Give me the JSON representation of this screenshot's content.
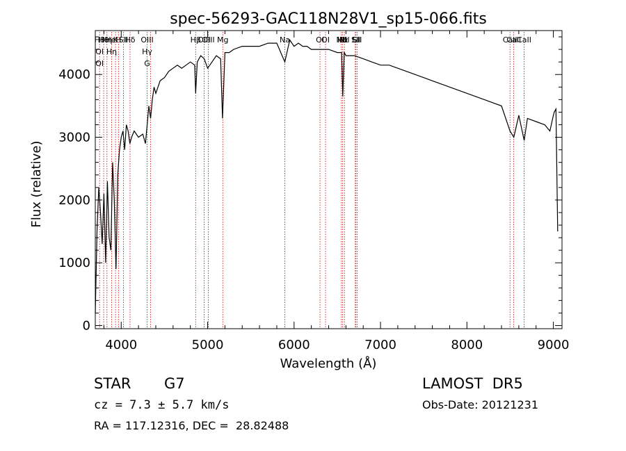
{
  "chart_data": {
    "type": "line",
    "title": "spec-56293-GAC118N28V1_sp15-066.fits",
    "xlabel": "Wavelength (Å)",
    "ylabel": "Flux (relative)",
    "xlim": [
      3700,
      9100
    ],
    "ylim": [
      -50,
      4700
    ],
    "xticks": [
      4000,
      5000,
      6000,
      7000,
      8000,
      9000
    ],
    "yticks": [
      0,
      1000,
      2000,
      3000,
      4000
    ],
    "grid": false,
    "line_color": "#000000",
    "marker_color": "#c00000",
    "series": [
      {
        "x": [
          3700,
          3720,
          3740,
          3760,
          3780,
          3800,
          3820,
          3840,
          3860,
          3880,
          3900,
          3920,
          3940,
          3960,
          3980,
          4000,
          4020,
          4040,
          4060,
          4080,
          4100,
          4120,
          4150,
          4200,
          4250,
          4280,
          4300,
          4320,
          4340,
          4360,
          4380,
          4400,
          4450,
          4500,
          4550,
          4600,
          4650,
          4700,
          4750,
          4800,
          4850,
          4861,
          4880,
          4920,
          4960,
          5000,
          5050,
          5100,
          5150,
          5172,
          5200,
          5250,
          5300,
          5400,
          5500,
          5600,
          5700,
          5800,
          5893,
          5950,
          6000,
          6050,
          6100,
          6150,
          6200,
          6300,
          6400,
          6500,
          6550,
          6563,
          6580,
          6600,
          6650,
          6700,
          6800,
          6900,
          7000,
          7100,
          7200,
          7300,
          7400,
          7500,
          7600,
          7700,
          7800,
          7900,
          8000,
          8100,
          8200,
          8300,
          8400,
          8498,
          8542,
          8600,
          8662,
          8700,
          8800,
          8900,
          8960,
          9000,
          9010,
          9030,
          9050
        ],
        "y": [
          200,
          1500,
          2200,
          1800,
          1300,
          2100,
          1000,
          2300,
          1400,
          1200,
          2600,
          2000,
          900,
          2400,
          2800,
          3000,
          3100,
          2800,
          3200,
          3100,
          2900,
          3000,
          3100,
          3000,
          3050,
          2900,
          3200,
          3500,
          3300,
          3600,
          3800,
          3700,
          3900,
          3950,
          4050,
          4100,
          4150,
          4100,
          4150,
          4200,
          4150,
          3700,
          4200,
          4300,
          4250,
          4100,
          4200,
          4300,
          4250,
          3300,
          4350,
          4350,
          4400,
          4450,
          4450,
          4450,
          4500,
          4500,
          4200,
          4550,
          4450,
          4500,
          4450,
          4450,
          4400,
          4400,
          4400,
          4350,
          4350,
          3650,
          4350,
          4300,
          4300,
          4300,
          4250,
          4200,
          4150,
          4150,
          4100,
          4050,
          4000,
          3950,
          3900,
          3850,
          3800,
          3750,
          3700,
          3650,
          3600,
          3550,
          3500,
          3100,
          3000,
          3350,
          2950,
          3300,
          3250,
          3200,
          3100,
          3350,
          3400,
          3450,
          1500
        ]
      }
    ],
    "lines": [
      {
        "x": 3750,
        "labels": [
          "H8",
          "OI",
          "OI"
        ]
      },
      {
        "x": 3797,
        "labels": [
          "Hθ"
        ]
      },
      {
        "x": 3835,
        "labels": [
          "Hη"
        ]
      },
      {
        "x": 3889,
        "labels": [
          "HeI",
          "Hη"
        ]
      },
      {
        "x": 3934,
        "labels": [
          "K"
        ]
      },
      {
        "x": 3968,
        "labels": [
          "H"
        ]
      },
      {
        "x": 4026,
        "labels": [
          "SII"
        ]
      },
      {
        "x": 4102,
        "labels": [
          "Hδ"
        ]
      },
      {
        "x": 4300,
        "labels": [
          "OIII",
          "Hγ",
          "G"
        ]
      },
      {
        "x": 4340,
        "labels": []
      },
      {
        "x": 4861,
        "labels": [
          "Hβ"
        ]
      },
      {
        "x": 4959,
        "labels": [
          "OIII"
        ]
      },
      {
        "x": 5007,
        "labels": [
          "OIII"
        ]
      },
      {
        "x": 5175,
        "labels": [
          "Mg"
        ]
      },
      {
        "x": 5893,
        "labels": [
          "Na"
        ]
      },
      {
        "x": 6300,
        "labels": [
          "OI"
        ]
      },
      {
        "x": 6364,
        "labels": [
          "OI"
        ]
      },
      {
        "x": 6548,
        "labels": [
          "NII"
        ]
      },
      {
        "x": 6563,
        "labels": [
          "Hα"
        ]
      },
      {
        "x": 6583,
        "labels": [
          "NII"
        ]
      },
      {
        "x": 6708,
        "labels": [
          "Li"
        ]
      },
      {
        "x": 6716,
        "labels": [
          "SII"
        ]
      },
      {
        "x": 6731,
        "labels": [
          "SII"
        ]
      },
      {
        "x": 8498,
        "labels": [
          "CaII"
        ]
      },
      {
        "x": 8542,
        "labels": [
          "CaII"
        ]
      },
      {
        "x": 8662,
        "labels": [
          "CaII"
        ]
      }
    ]
  },
  "info": {
    "class": "STAR",
    "subclass": "G7",
    "cz": "cz = 7.3 ± 5.7 km/s",
    "radec": "RA = 117.12316, DEC =  28.82488",
    "survey": "LAMOST  DR5",
    "obsdate": "Obs-Date: 20121231"
  }
}
